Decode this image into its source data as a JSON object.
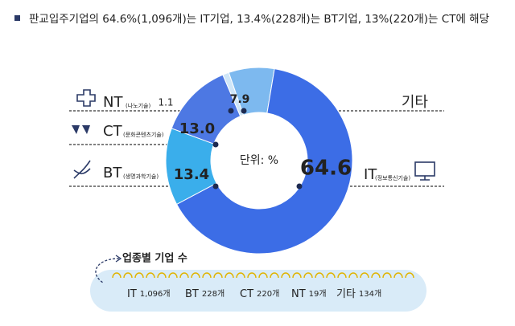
{
  "chart_data": {
    "type": "pie",
    "title": "판교입주기업의 64.6%(1,096개)는 IT기업, 13.4%(228개)는 BT기업, 13%(220개)는 CT에 해당",
    "center_label": "단위: %",
    "categories": [
      "NT",
      "기타",
      "IT",
      "BT",
      "CT"
    ],
    "category_subtitles": [
      "(나노기술)",
      null,
      "(정보통신기술)",
      "(생명과학기술)",
      "(문화콘텐츠기술)"
    ],
    "values": [
      1.1,
      7.9,
      64.6,
      13.4,
      13.0
    ],
    "value_labels": [
      "1.1",
      "7.9",
      "64.6",
      "13.4",
      "13.0"
    ],
    "colors": [
      "#cfe6f8",
      "#7db9ef",
      "#3c6de6",
      "#3aaeeb",
      "#4d78e3"
    ],
    "count_box": {
      "title": "업종별 기업 수",
      "items": [
        {
          "name": "IT",
          "count": "1,096개"
        },
        {
          "name": "BT",
          "count": "228개"
        },
        {
          "name": "CT",
          "count": "220개"
        },
        {
          "name": "NT",
          "count": "19개"
        },
        {
          "name": "기타",
          "count": "134개"
        }
      ]
    }
  }
}
